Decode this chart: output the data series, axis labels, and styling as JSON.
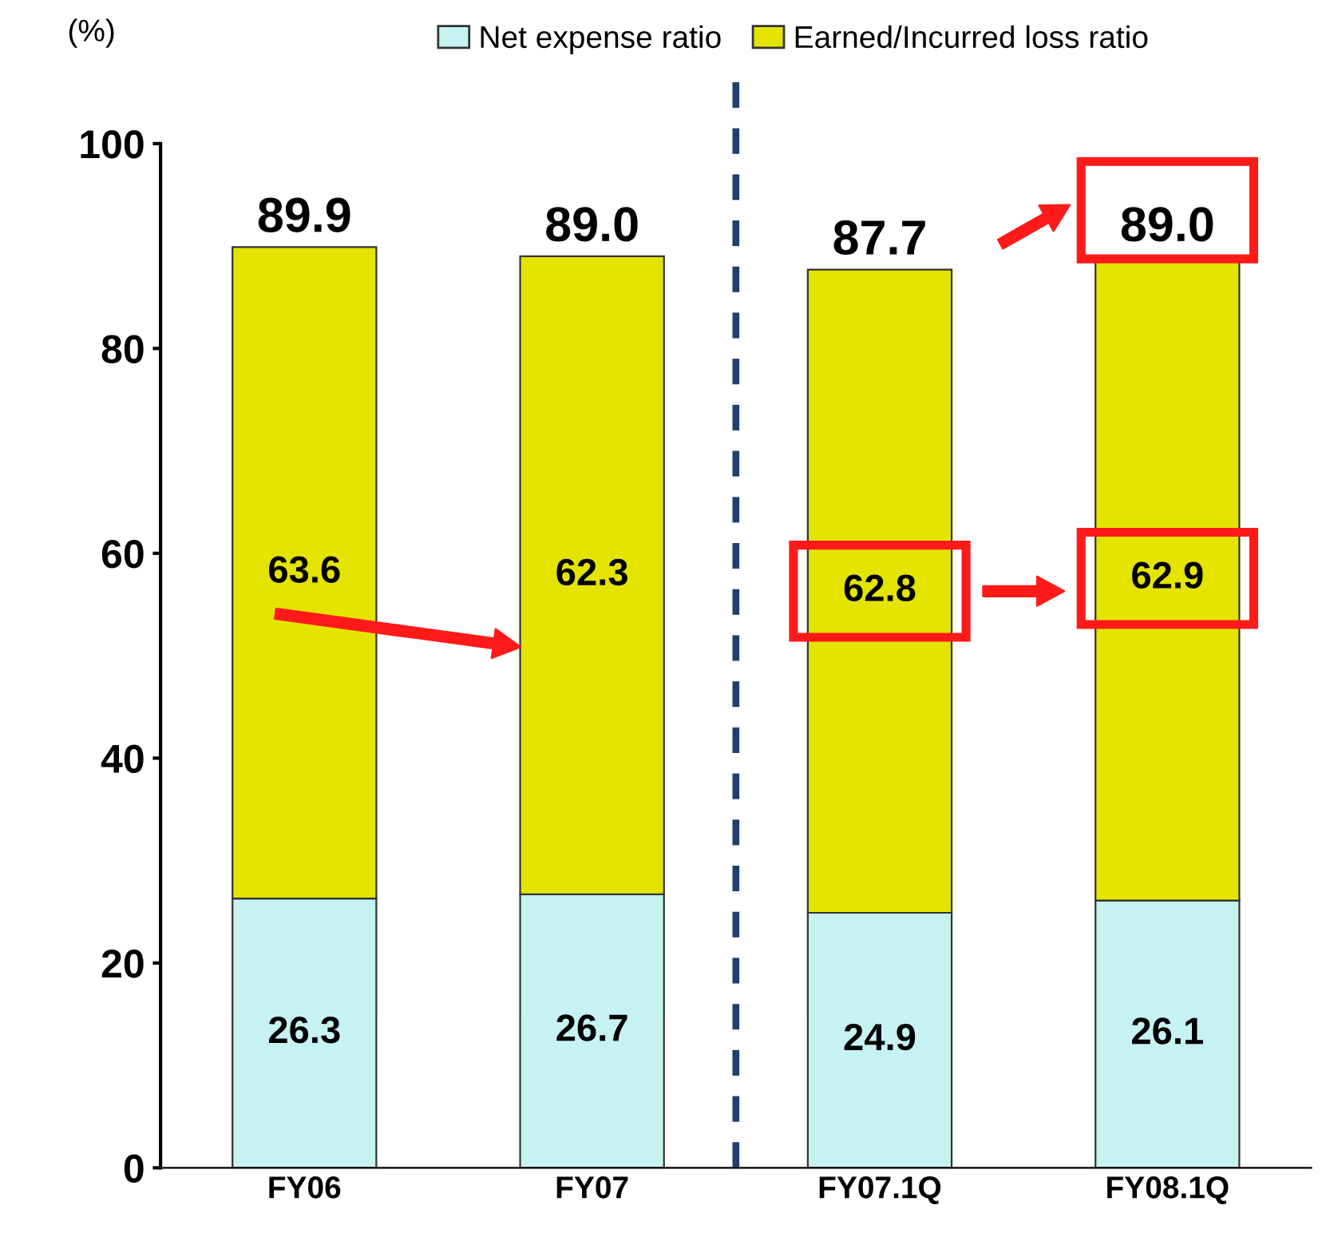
{
  "chart_data": {
    "type": "bar",
    "stacked": true,
    "categories": [
      "FY06",
      "FY07",
      "FY07.1Q",
      "FY08.1Q"
    ],
    "series": [
      {
        "name": "Net expense ratio",
        "color": "#c6f2f2",
        "values": [
          26.3,
          26.7,
          24.9,
          26.1
        ]
      },
      {
        "name": "Earned/Incurred loss ratio",
        "color": "#e4e400",
        "values": [
          63.6,
          62.3,
          62.8,
          62.9
        ]
      }
    ],
    "totals": [
      "89.9",
      "89.0",
      "87.7",
      "89.0"
    ],
    "data_labels": true,
    "ylabel": "(%)",
    "ylim": [
      0,
      100
    ],
    "yticks": [
      0,
      20,
      40,
      60,
      80,
      100
    ],
    "legend": "top",
    "grid": false
  }
}
